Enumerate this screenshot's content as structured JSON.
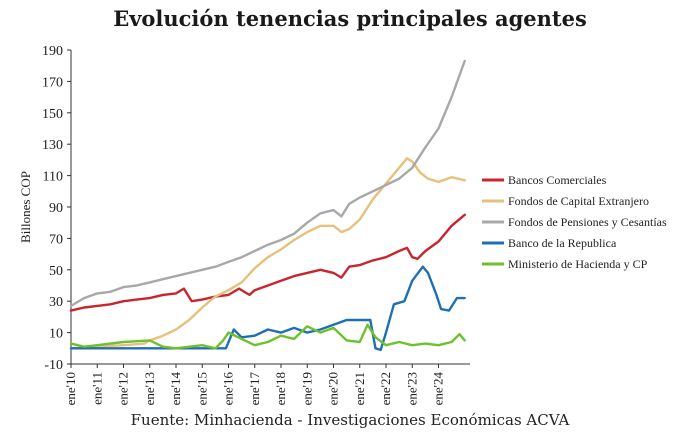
{
  "title": "Evolución tenencias principales agentes",
  "source": "Fuente: Minhacienda  - Investigaciones Económicas ACVA",
  "chart_data": {
    "type": "line",
    "ylabel": "Billones COP",
    "xlabel": "",
    "ylim": [
      -10,
      190
    ],
    "yticks": [
      -10,
      10,
      30,
      50,
      70,
      90,
      110,
      130,
      150,
      170,
      190
    ],
    "x_tick_labels": [
      "ene'10",
      "ene'11",
      "ene'12",
      "ene'13",
      "ene'14",
      "ene'15",
      "ene'16",
      "ene'17",
      "ene'18",
      "ene'19",
      "ene'20",
      "ene'21",
      "ene'22",
      "ene'23",
      "ene'24"
    ],
    "x_start": 2010.0,
    "x_end": 2025.2,
    "grid": false,
    "legend_position": "right",
    "series": [
      {
        "name": "Bancos Comerciales",
        "color": "#c8252c",
        "points": [
          [
            2010.0,
            24
          ],
          [
            2010.5,
            26
          ],
          [
            2011.0,
            27
          ],
          [
            2011.5,
            28
          ],
          [
            2012.0,
            30
          ],
          [
            2012.5,
            31
          ],
          [
            2013.0,
            32
          ],
          [
            2013.5,
            34
          ],
          [
            2014.0,
            35
          ],
          [
            2014.3,
            38
          ],
          [
            2014.6,
            30
          ],
          [
            2015.0,
            31
          ],
          [
            2015.5,
            33
          ],
          [
            2016.0,
            34
          ],
          [
            2016.4,
            38
          ],
          [
            2016.8,
            34
          ],
          [
            2017.0,
            37
          ],
          [
            2017.5,
            40
          ],
          [
            2018.0,
            43
          ],
          [
            2018.5,
            46
          ],
          [
            2019.0,
            48
          ],
          [
            2019.5,
            50
          ],
          [
            2020.0,
            48
          ],
          [
            2020.3,
            45
          ],
          [
            2020.6,
            52
          ],
          [
            2021.0,
            53
          ],
          [
            2021.5,
            56
          ],
          [
            2022.0,
            58
          ],
          [
            2022.5,
            62
          ],
          [
            2022.8,
            64
          ],
          [
            2023.0,
            58
          ],
          [
            2023.2,
            57
          ],
          [
            2023.5,
            62
          ],
          [
            2024.0,
            68
          ],
          [
            2024.5,
            78
          ],
          [
            2025.0,
            85
          ]
        ]
      },
      {
        "name": "Fondos de Capital Extranjero",
        "color": "#e7c07c",
        "points": [
          [
            2010.0,
            0
          ],
          [
            2011.0,
            1
          ],
          [
            2012.0,
            2
          ],
          [
            2012.8,
            3
          ],
          [
            2013.0,
            5
          ],
          [
            2013.5,
            8
          ],
          [
            2014.0,
            12
          ],
          [
            2014.5,
            18
          ],
          [
            2015.0,
            26
          ],
          [
            2015.5,
            33
          ],
          [
            2016.0,
            37
          ],
          [
            2016.5,
            42
          ],
          [
            2017.0,
            51
          ],
          [
            2017.5,
            58
          ],
          [
            2018.0,
            63
          ],
          [
            2018.5,
            69
          ],
          [
            2019.0,
            74
          ],
          [
            2019.5,
            78
          ],
          [
            2020.0,
            78
          ],
          [
            2020.3,
            74
          ],
          [
            2020.6,
            76
          ],
          [
            2021.0,
            82
          ],
          [
            2021.5,
            95
          ],
          [
            2022.0,
            105
          ],
          [
            2022.5,
            115
          ],
          [
            2022.8,
            121
          ],
          [
            2023.0,
            119
          ],
          [
            2023.3,
            112
          ],
          [
            2023.6,
            108
          ],
          [
            2024.0,
            106
          ],
          [
            2024.5,
            109
          ],
          [
            2025.0,
            107
          ]
        ]
      },
      {
        "name": "Fondos de Pensiones y Cesantías",
        "color": "#a8a8a8",
        "points": [
          [
            2010.0,
            27
          ],
          [
            2010.5,
            32
          ],
          [
            2011.0,
            35
          ],
          [
            2011.5,
            36
          ],
          [
            2012.0,
            39
          ],
          [
            2012.5,
            40
          ],
          [
            2013.0,
            42
          ],
          [
            2013.5,
            44
          ],
          [
            2014.0,
            46
          ],
          [
            2014.5,
            48
          ],
          [
            2015.0,
            50
          ],
          [
            2015.5,
            52
          ],
          [
            2016.0,
            55
          ],
          [
            2016.5,
            58
          ],
          [
            2017.0,
            62
          ],
          [
            2017.5,
            66
          ],
          [
            2018.0,
            69
          ],
          [
            2018.5,
            73
          ],
          [
            2019.0,
            80
          ],
          [
            2019.5,
            86
          ],
          [
            2020.0,
            88
          ],
          [
            2020.3,
            84
          ],
          [
            2020.6,
            92
          ],
          [
            2021.0,
            96
          ],
          [
            2021.5,
            100
          ],
          [
            2022.0,
            104
          ],
          [
            2022.5,
            108
          ],
          [
            2023.0,
            115
          ],
          [
            2023.5,
            128
          ],
          [
            2024.0,
            140
          ],
          [
            2024.5,
            160
          ],
          [
            2025.0,
            183
          ]
        ]
      },
      {
        "name": "Banco de la Republica",
        "color": "#1f6fb2",
        "points": [
          [
            2010.0,
            0
          ],
          [
            2014.0,
            0
          ],
          [
            2015.9,
            0
          ],
          [
            2016.2,
            12
          ],
          [
            2016.5,
            7
          ],
          [
            2017.0,
            8
          ],
          [
            2017.5,
            12
          ],
          [
            2018.0,
            10
          ],
          [
            2018.5,
            13
          ],
          [
            2019.0,
            10
          ],
          [
            2019.5,
            12
          ],
          [
            2020.0,
            15
          ],
          [
            2020.5,
            18
          ],
          [
            2021.0,
            18
          ],
          [
            2021.4,
            18
          ],
          [
            2021.6,
            0
          ],
          [
            2021.8,
            -1
          ],
          [
            2022.0,
            10
          ],
          [
            2022.3,
            28
          ],
          [
            2022.7,
            30
          ],
          [
            2023.0,
            43
          ],
          [
            2023.4,
            52
          ],
          [
            2023.6,
            48
          ],
          [
            2023.9,
            35
          ],
          [
            2024.1,
            25
          ],
          [
            2024.4,
            24
          ],
          [
            2024.7,
            32
          ],
          [
            2025.0,
            32
          ]
        ]
      },
      {
        "name": "Ministerio de Hacienda y CP",
        "color": "#6fc12c",
        "points": [
          [
            2010.0,
            3
          ],
          [
            2010.5,
            1
          ],
          [
            2011.0,
            2
          ],
          [
            2012.0,
            4
          ],
          [
            2013.0,
            5
          ],
          [
            2013.5,
            1
          ],
          [
            2014.0,
            0
          ],
          [
            2015.0,
            2
          ],
          [
            2015.5,
            0
          ],
          [
            2015.8,
            5
          ],
          [
            2016.0,
            10
          ],
          [
            2016.5,
            6
          ],
          [
            2017.0,
            2
          ],
          [
            2017.5,
            4
          ],
          [
            2018.0,
            8
          ],
          [
            2018.5,
            6
          ],
          [
            2019.0,
            14
          ],
          [
            2019.5,
            10
          ],
          [
            2020.0,
            13
          ],
          [
            2020.5,
            5
          ],
          [
            2021.0,
            4
          ],
          [
            2021.3,
            15
          ],
          [
            2021.6,
            7
          ],
          [
            2022.0,
            2
          ],
          [
            2022.5,
            4
          ],
          [
            2023.0,
            2
          ],
          [
            2023.5,
            3
          ],
          [
            2024.0,
            2
          ],
          [
            2024.5,
            4
          ],
          [
            2024.8,
            9
          ],
          [
            2025.0,
            5
          ]
        ]
      }
    ]
  }
}
